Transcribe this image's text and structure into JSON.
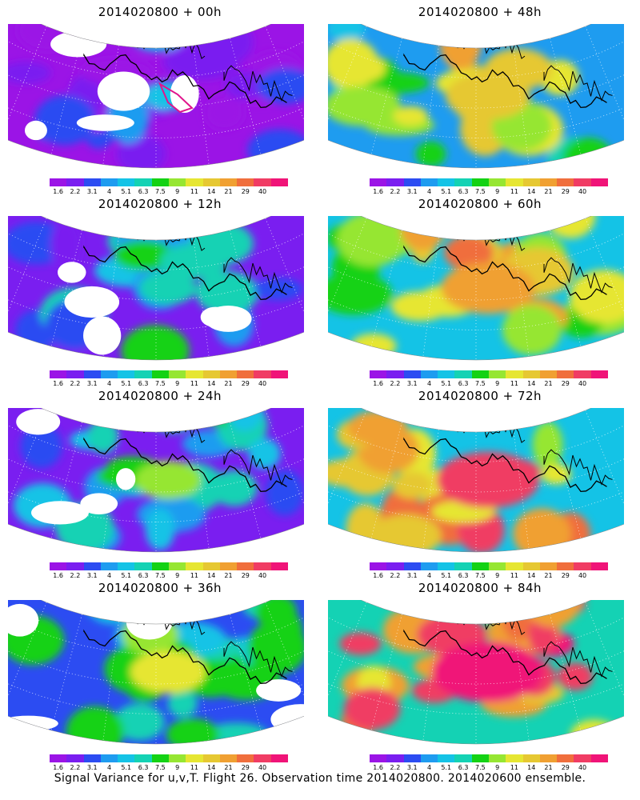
{
  "panels": [
    {
      "title": "2014020800 + 00h",
      "forecast_hour": 0
    },
    {
      "title": "2014020800 + 48h",
      "forecast_hour": 48
    },
    {
      "title": "2014020800 + 12h",
      "forecast_hour": 12
    },
    {
      "title": "2014020800 + 60h",
      "forecast_hour": 60
    },
    {
      "title": "2014020800 + 24h",
      "forecast_hour": 24
    },
    {
      "title": "2014020800 + 72h",
      "forecast_hour": 72
    },
    {
      "title": "2014020800 + 36h",
      "forecast_hour": 36
    },
    {
      "title": "2014020800 + 84h",
      "forecast_hour": 84
    }
  ],
  "colorbar": {
    "labels": [
      "1.6",
      "2.2",
      "3.1",
      "4",
      "5.1",
      "6.3",
      "7.5",
      "9",
      "11",
      "14",
      "21",
      "29",
      "40"
    ],
    "colors": [
      "#9b14e6",
      "#7a1ef0",
      "#2c4cf2",
      "#1e9cf0",
      "#14c3e6",
      "#14d2b4",
      "#14d214",
      "#96e632",
      "#e6e632",
      "#e6c832",
      "#f0a032",
      "#f06e3c",
      "#f03c64",
      "#f01478"
    ]
  },
  "caption": "Signal Variance for u,v,T. Flight 26. Observation time 2014020800. 2014020600 ensemble."
}
